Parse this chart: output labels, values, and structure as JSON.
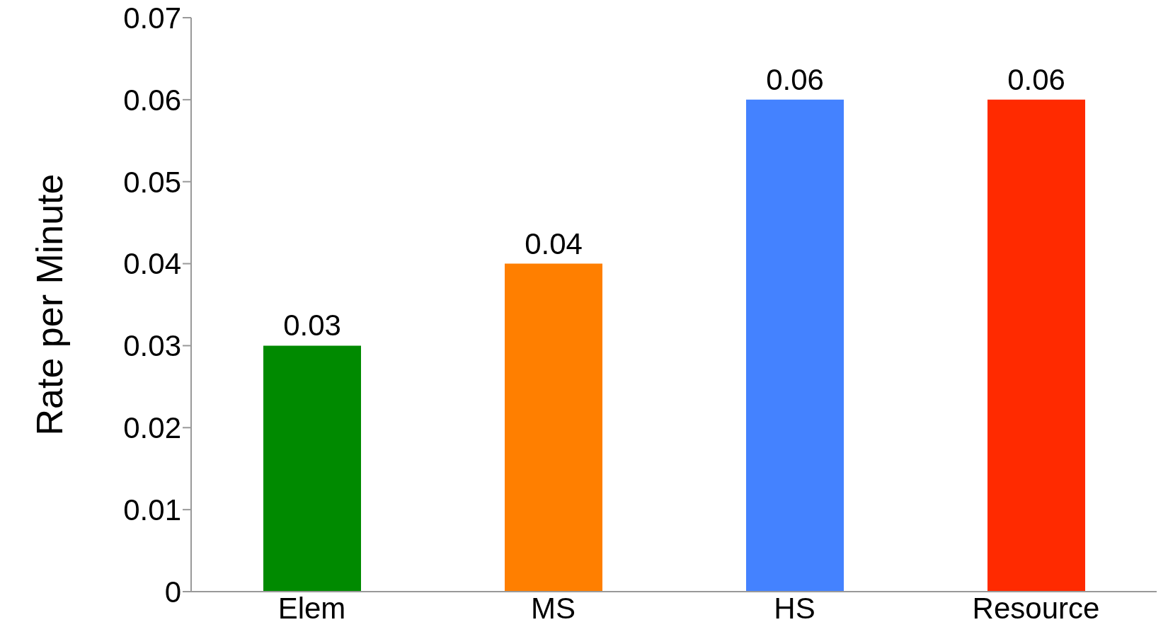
{
  "chart_data": {
    "type": "bar",
    "ylabel": "Rate per Minute",
    "categories": [
      "Elem",
      "MS",
      "HS",
      "Resource"
    ],
    "values": [
      0.03,
      0.04,
      0.06,
      0.06
    ],
    "colors": [
      "#008a00",
      "#ff7f00",
      "#4482ff",
      "#ff2a00"
    ],
    "ylim": [
      0,
      0.07
    ],
    "yticks": [
      0,
      0.01,
      0.02,
      0.03,
      0.04,
      0.05,
      0.06,
      0.07
    ],
    "data_labels": true
  }
}
